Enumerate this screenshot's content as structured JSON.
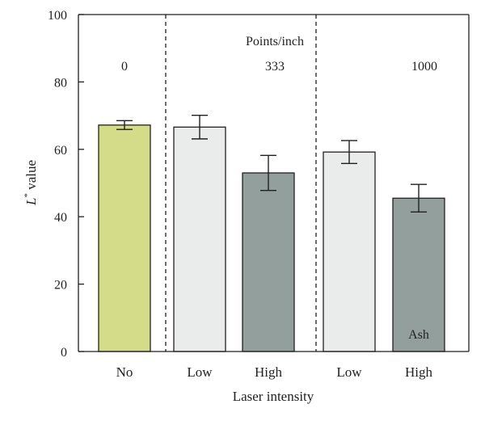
{
  "chart_data": {
    "type": "bar",
    "categories": [
      "No",
      "Low",
      "High",
      "Low",
      "High"
    ],
    "values": [
      67.2,
      66.6,
      53.0,
      59.2,
      45.5
    ],
    "errors": [
      1.3,
      3.5,
      5.2,
      3.4,
      4.1
    ],
    "bar_colors": [
      "#d4dc8a",
      "#eaeceb",
      "#939f9d",
      "#eaeceb",
      "#939f9d"
    ],
    "ylim": [
      0,
      100
    ],
    "yticks": [
      0,
      20,
      40,
      60,
      80,
      100
    ],
    "ylabel_main": "L",
    "ylabel_sup": "*",
    "ylabel_rest": " value",
    "xlabel": "Laser intensity",
    "group_header": "Points/inch",
    "group_labels": [
      "0",
      "333",
      "1000"
    ],
    "bar_annotation": "Ash",
    "grid": false
  }
}
